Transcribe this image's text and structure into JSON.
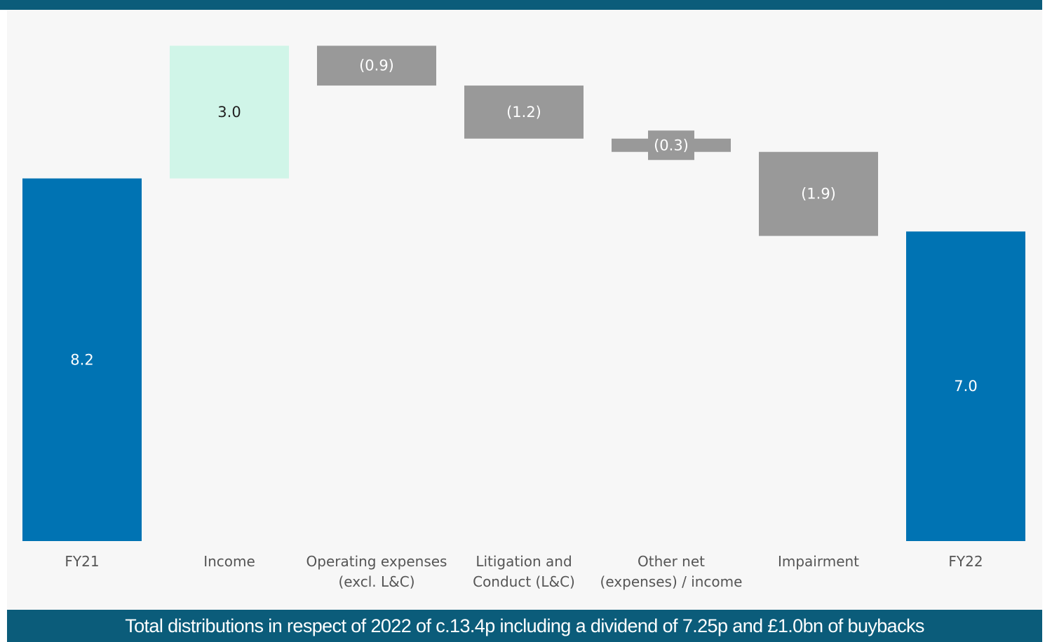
{
  "chart_data": {
    "type": "waterfall",
    "categories": [
      "FY21",
      "Income",
      "Operating expenses\n(excl. L&C)",
      "Litigation and\nConduct (L&C)",
      "Other net\n(expenses) / income",
      "Impairment",
      "FY22"
    ],
    "values": [
      8.2,
      3.0,
      -0.9,
      -1.2,
      -0.3,
      -1.9,
      7.0
    ],
    "data_labels": [
      "8.2",
      "3.0",
      "(0.9)",
      "(1.2)",
      "(0.3)",
      "(1.9)",
      "7.0"
    ],
    "kinds": [
      "total",
      "increase",
      "decrease",
      "decrease",
      "decrease",
      "decrease",
      "total"
    ],
    "ylim": [
      0,
      11.2
    ],
    "grid": false,
    "legend": "none",
    "title": "",
    "xlabel": "",
    "ylabel": ""
  },
  "colors": {
    "total": "#0073b3",
    "increase": "#d0f5e8",
    "decrease": "#999999",
    "total_label": "#ffffff",
    "increase_label": "#222222",
    "decrease_label": "#ffffff",
    "axis_label": "#555555",
    "banner": "#0b5c7a",
    "plot_background": "#f7f7f7"
  },
  "footer": {
    "text": "Total distributions in respect of 2022 of c.13.4p including a dividend of 7.25p and £1.0bn of buybacks"
  }
}
